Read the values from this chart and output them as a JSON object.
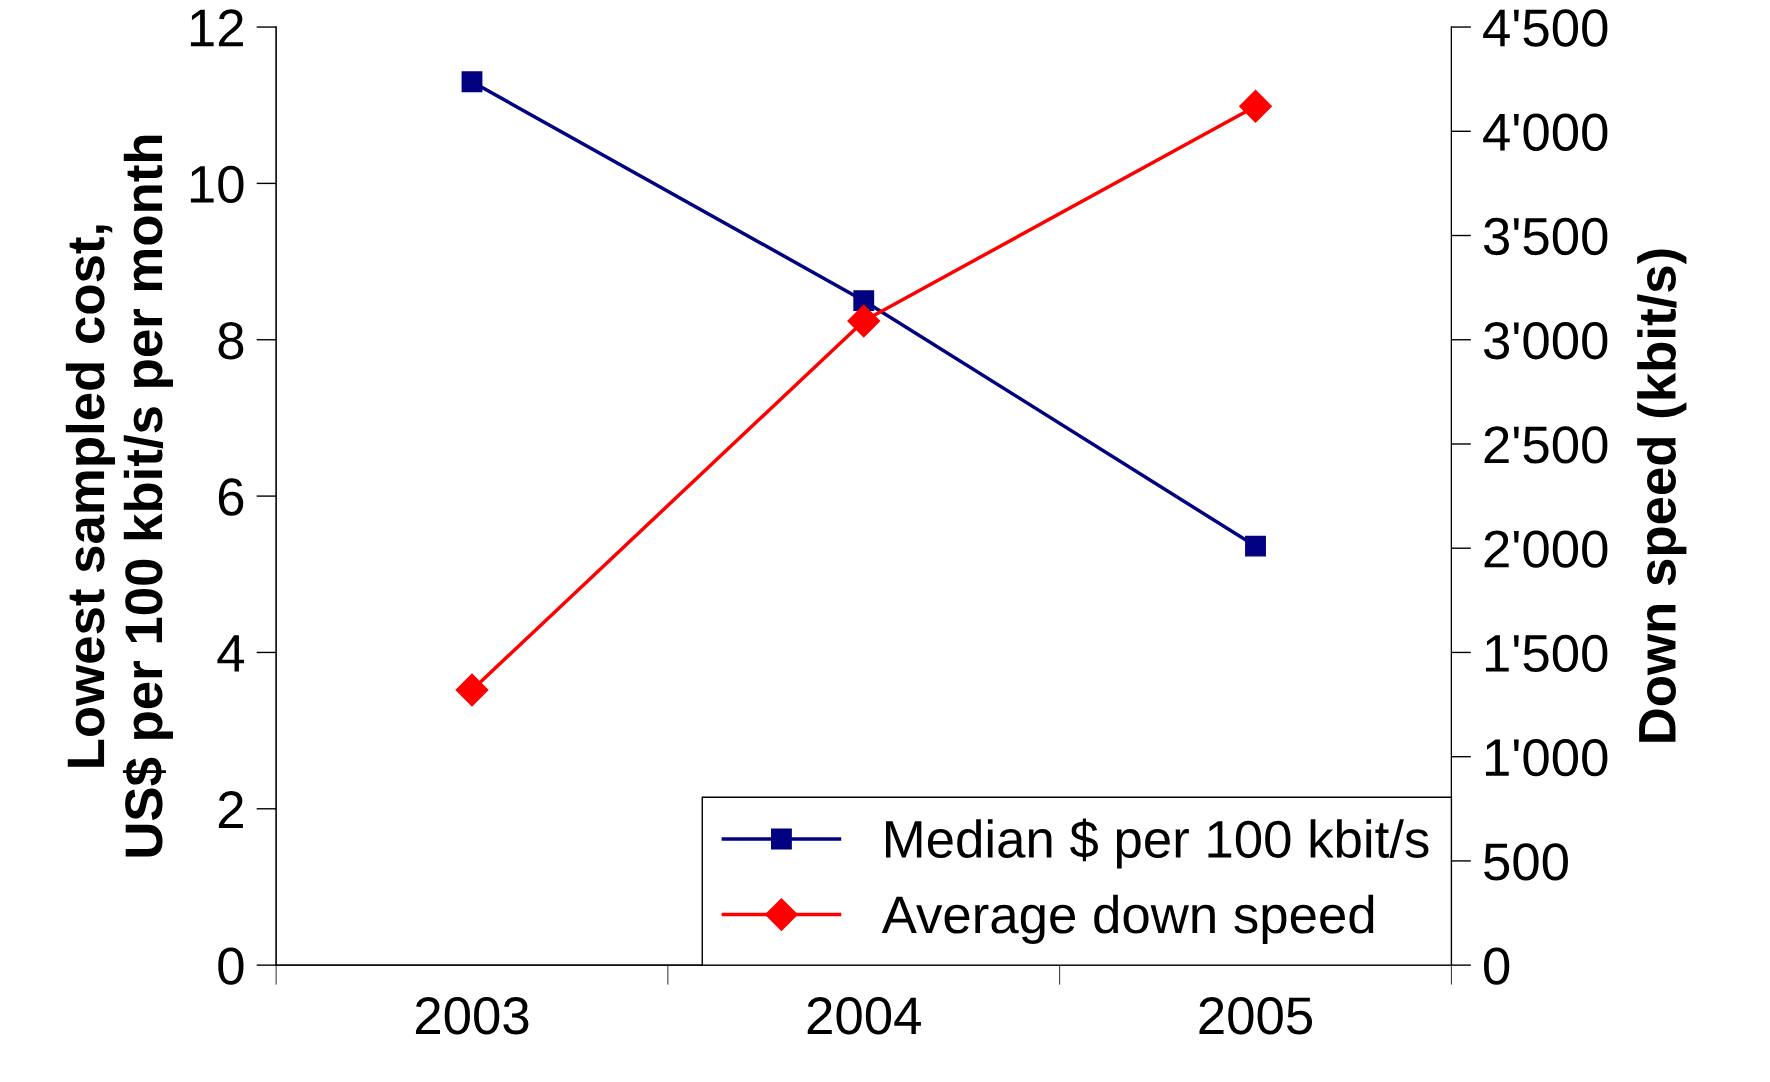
{
  "chart_data": {
    "type": "line",
    "ylabel": "Lowest sampled cost,\nUS$ per 100 kbit/s per month",
    "y2label": "Down speed (kbit/s)",
    "categories": [
      "2003",
      "2004",
      "2005"
    ],
    "series": [
      {
        "name": "Median $ per 100 kbit/s",
        "color": "#000080",
        "marker": "square",
        "values": [
          11.3,
          8.5,
          5.36
        ]
      },
      {
        "name": "Average down speed",
        "color": "#ff0000",
        "marker": "diamond",
        "axis": "y2",
        "values": [
          1320,
          3090,
          4120
        ]
      }
    ],
    "ylim": [
      0,
      12
    ],
    "yticks": [
      0,
      2,
      4,
      6,
      8,
      10,
      12
    ],
    "y2lim": [
      0,
      4500
    ],
    "y2ticks": [
      0,
      {
        "value": 500,
        "label": "500"
      },
      {
        "value": 1000,
        "label": "1'000"
      },
      {
        "value": 1500,
        "label": "1'500"
      },
      {
        "value": 2000,
        "label": "2'000"
      },
      {
        "value": 2500,
        "label": "2'500"
      },
      {
        "value": 3000,
        "label": "3'000"
      },
      {
        "value": 3500,
        "label": "3'500"
      },
      {
        "value": 4000,
        "label": "4'000"
      },
      {
        "value": 4500,
        "label": "4'500"
      }
    ],
    "grid": false,
    "legend": "bottom right",
    "line_style": "solid"
  }
}
